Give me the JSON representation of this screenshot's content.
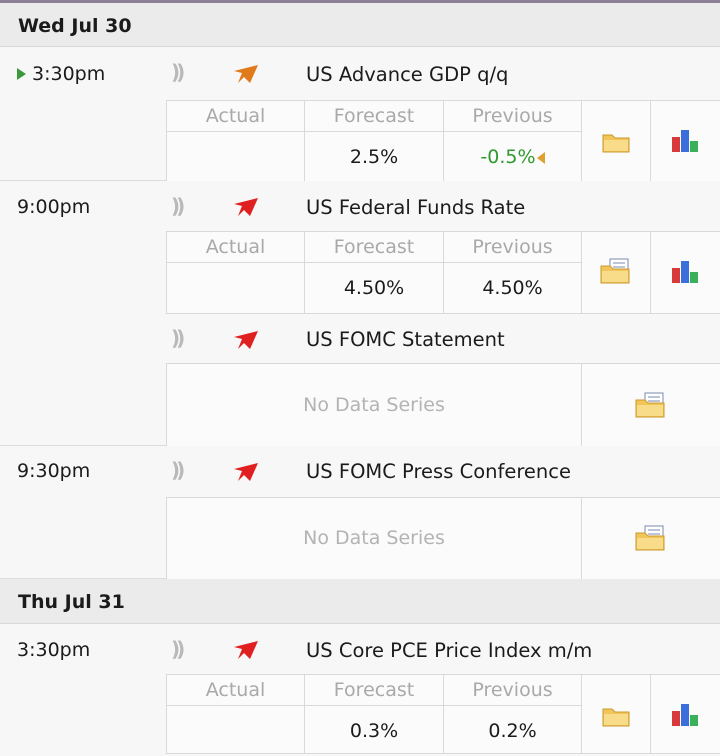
{
  "days": [
    {
      "date": "Wed Jul 30"
    },
    {
      "date": "Thu Jul 31"
    }
  ],
  "labels": {
    "actual": "Actual",
    "forecast": "Forecast",
    "previous": "Previous",
    "no_data": "No Data Series"
  },
  "events": [
    {
      "time": "3:30pm",
      "name": "US Advance GDP q/q",
      "actual": "",
      "forecast": "2.5%",
      "previous": "-0.5%",
      "previous_revised": true,
      "impact_color": "#e07a1a"
    },
    {
      "time": "9:00pm",
      "name": "US Federal Funds Rate",
      "actual": "",
      "forecast": "4.50%",
      "previous": "4.50%",
      "impact_color": "#e02020"
    },
    {
      "time": "",
      "name": "US FOMC Statement",
      "no_data": true,
      "impact_color": "#e02020"
    },
    {
      "time": "9:30pm",
      "name": "US FOMC Press Conference",
      "no_data": true,
      "impact_color": "#e02020"
    },
    {
      "time": "3:30pm",
      "name": "US Core PCE Price Index m/m",
      "actual": "",
      "forecast": "0.3%",
      "previous": "0.2%",
      "impact_color": "#e02020"
    }
  ],
  "icons": {
    "sound": "sound-icon",
    "impact": "impact-icon",
    "detail": "folder-icon",
    "news_detail": "folder-news-icon",
    "chart": "bar-chart-icon"
  },
  "colors": {
    "current_marker": "#3a9a3a",
    "previous_positive": "#2e9a2e",
    "revised_marker": "#e0a030"
  }
}
